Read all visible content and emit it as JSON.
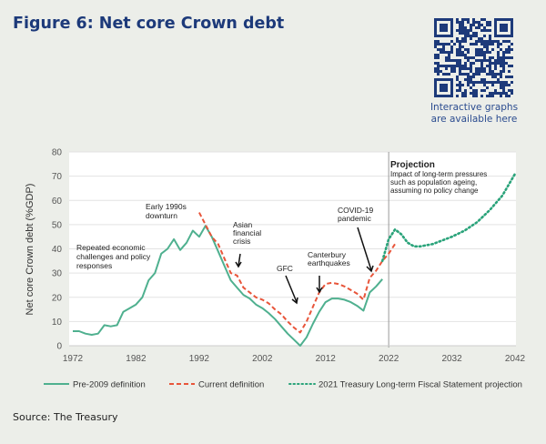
{
  "title": "Figure 6: Net core Crown debt",
  "qr": {
    "caption_line1": "Interactive graphs",
    "caption_line2": "are available here",
    "color": "#1d3a7a"
  },
  "source": "Source: The Treasury",
  "chart_data": {
    "type": "line",
    "title": "",
    "xlabel": "",
    "ylabel": "Net core Crown debt (%GDP)",
    "xlim": [
      1972,
      2042
    ],
    "ylim": [
      0,
      80
    ],
    "xticks": [
      1972,
      1982,
      1992,
      2002,
      2012,
      2022,
      2032,
      2042
    ],
    "yticks": [
      0,
      10,
      20,
      30,
      40,
      50,
      60,
      70,
      80
    ],
    "grid": "horizontal",
    "legend": "bottom",
    "projection_start": 2022,
    "series": [
      {
        "name": "Pre-2009 definition",
        "style": "solid",
        "color": "#4fb08f",
        "x": [
          1972,
          1973,
          1974,
          1975,
          1976,
          1977,
          1978,
          1979,
          1980,
          1981,
          1982,
          1983,
          1984,
          1985,
          1986,
          1987,
          1988,
          1989,
          1990,
          1991,
          1992,
          1993,
          1994,
          1995,
          1996,
          1997,
          1998,
          1999,
          2000,
          2001,
          2002,
          2003,
          2004,
          2005,
          2006,
          2007,
          2008,
          2009,
          2010,
          2011,
          2012,
          2013,
          2014,
          2015,
          2016,
          2017,
          2018,
          2019,
          2020,
          2021
        ],
        "y": [
          6,
          6,
          5,
          4.5,
          5,
          8.5,
          8,
          8.5,
          14,
          15.5,
          17,
          20,
          27,
          30,
          38,
          40,
          44,
          39.5,
          42.5,
          47.5,
          45,
          49.5,
          45,
          39,
          33,
          27,
          24,
          21,
          19.5,
          17,
          15.5,
          13.5,
          11,
          8,
          5,
          2.5,
          0,
          3.5,
          9,
          14,
          18,
          19.5,
          19.5,
          19,
          18,
          16.5,
          14.5,
          22,
          24.5,
          27.5
        ]
      },
      {
        "name": "Current definition",
        "style": "dashed",
        "color": "#e8553a",
        "x": [
          1992,
          1993,
          1994,
          1995,
          1996,
          1997,
          1998,
          1999,
          2000,
          2001,
          2002,
          2003,
          2004,
          2005,
          2006,
          2007,
          2008,
          2009,
          2010,
          2011,
          2012,
          2013,
          2014,
          2015,
          2016,
          2017,
          2018,
          2019,
          2020,
          2021,
          2022,
          2023
        ],
        "y": [
          55,
          50,
          45,
          42,
          36,
          30,
          29,
          24,
          22,
          20,
          19,
          17.5,
          15,
          13,
          10,
          7.5,
          5.5,
          10,
          16,
          22,
          25.5,
          26,
          25.5,
          24.5,
          23,
          21.5,
          19,
          28,
          31,
          35,
          38,
          42
        ]
      },
      {
        "name": "2021 Treasury Long-term Fiscal Statement projection",
        "style": "dotted",
        "color": "#2aa37a",
        "x": [
          2021,
          2022,
          2023,
          2024,
          2025,
          2026,
          2027,
          2028,
          2029,
          2030,
          2031,
          2032,
          2034,
          2036,
          2038,
          2040,
          2042
        ],
        "y": [
          35,
          44,
          48,
          46,
          42.5,
          41,
          41,
          41.5,
          42,
          43,
          44,
          45,
          47.5,
          51,
          56,
          62,
          71
        ]
      }
    ],
    "annotations": [
      {
        "label": "Repeated economic challenges and policy responses"
      },
      {
        "label": "Early 1990s downturn"
      },
      {
        "label": "Asian financial crisis"
      },
      {
        "label": "GFC"
      },
      {
        "label": "Canterbury earthquakes"
      },
      {
        "label": "COVID-19 pandemic"
      },
      {
        "label": "Projection",
        "sub": "Impact of long-term pressures such as population ageing, assuming  no policy change"
      }
    ]
  }
}
